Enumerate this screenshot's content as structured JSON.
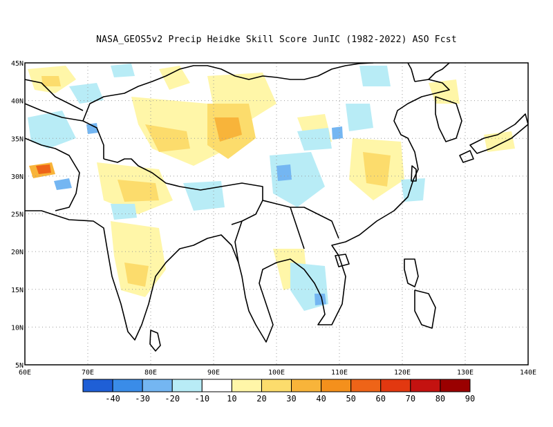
{
  "title": "NASA_GEOS5v2 Precip Heidke Skill Score JunIC (1982-2022) ASO Fcst",
  "map": {
    "lon_range": [
      60,
      140
    ],
    "lat_range": [
      5,
      45
    ],
    "x_ticks": [
      "60E",
      "70E",
      "80E",
      "90E",
      "100E",
      "110E",
      "120E",
      "130E",
      "140E"
    ],
    "y_ticks": [
      "45N",
      "40N",
      "35N",
      "30N",
      "25N",
      "20N",
      "15N",
      "10N",
      "5N"
    ],
    "gridlines": "dotted"
  },
  "colorbar": {
    "colors": [
      "#1f5fd6",
      "#3a8ce8",
      "#74b6f2",
      "#b8ecf6",
      "#ffffff",
      "#fff6a8",
      "#fcdc6c",
      "#f8b43a",
      "#f4901c",
      "#ee6418",
      "#e23810",
      "#c41210",
      "#9a0000"
    ],
    "labels": [
      "-40",
      "-30",
      "-20",
      "-10",
      "10",
      "20",
      "30",
      "40",
      "50",
      "60",
      "70",
      "80",
      "90"
    ]
  }
}
